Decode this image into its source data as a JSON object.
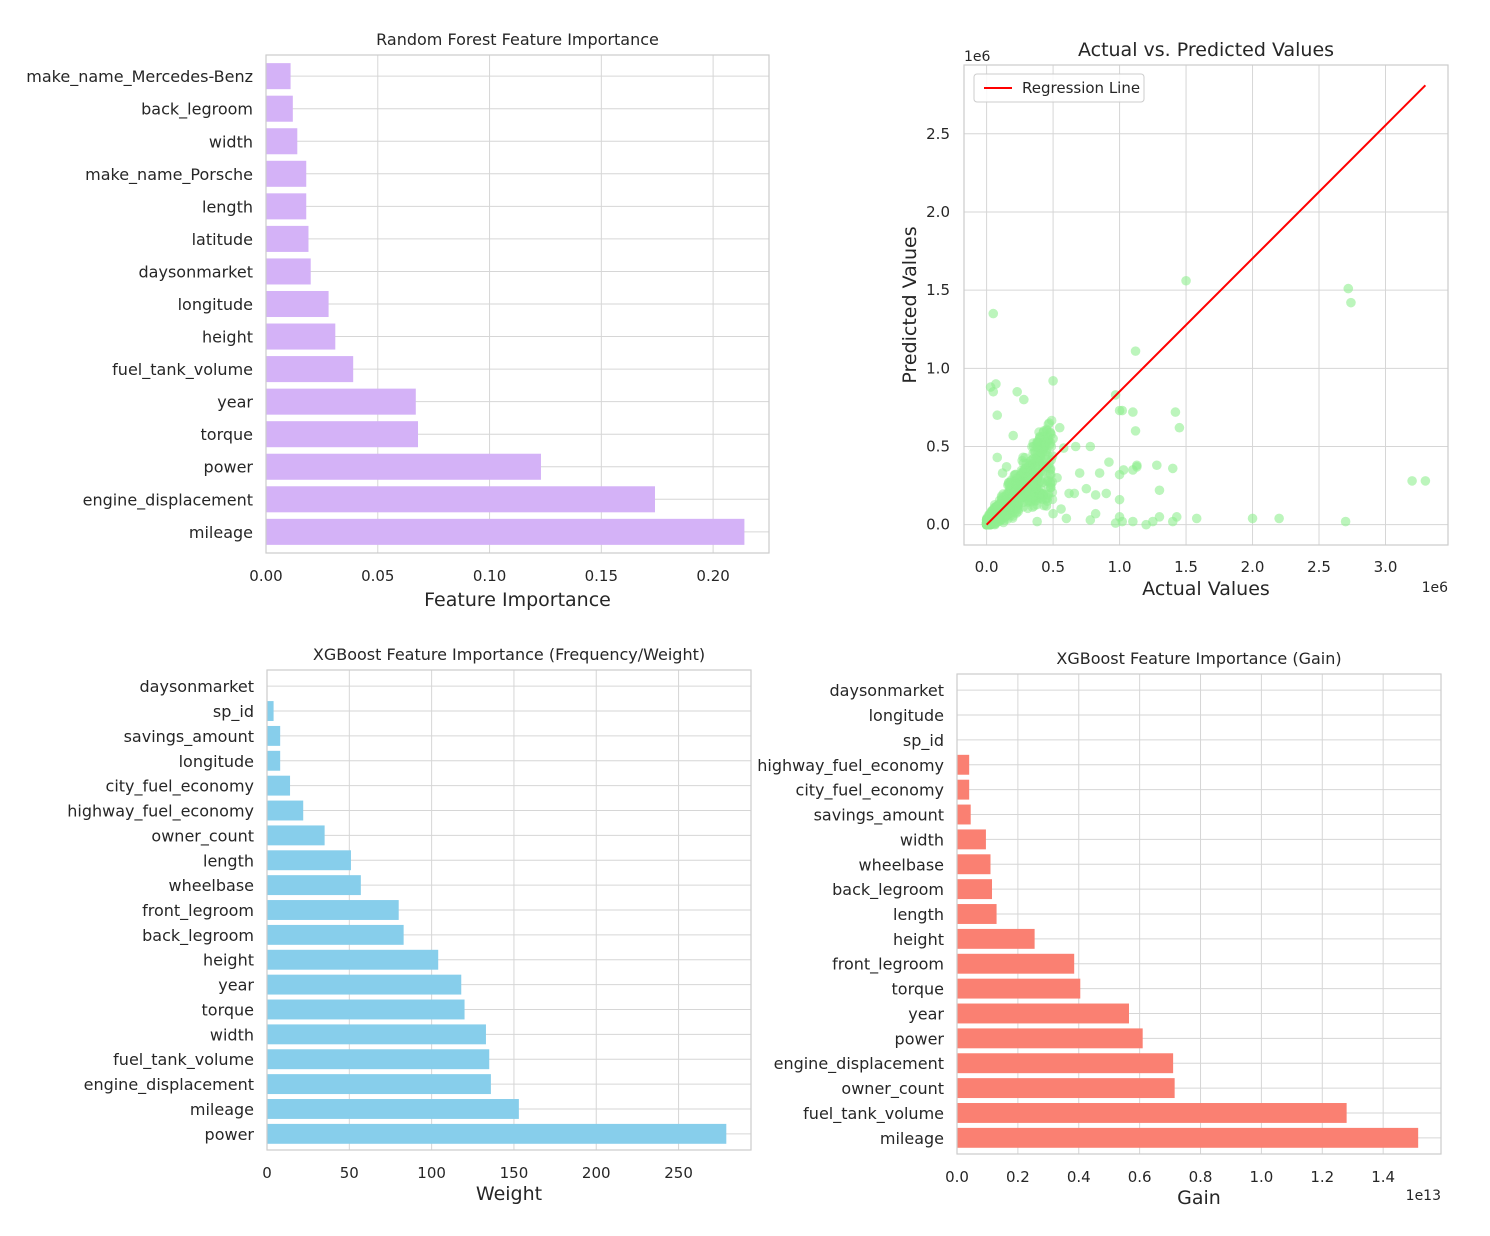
{
  "chart_data": [
    {
      "type": "bar",
      "orientation": "horizontal",
      "title": "Random Forest Feature Importance",
      "xlabel": "Feature Importance",
      "ylabel": "",
      "color": "#d4b2f7",
      "xlim": [
        0,
        0.225
      ],
      "xticks": [
        0,
        0.05,
        0.1,
        0.15,
        0.2
      ],
      "xtick_labels": [
        "0.00",
        "0.05",
        "0.10",
        "0.15",
        "0.20"
      ],
      "grid": true,
      "categories": [
        "mileage",
        "engine_displacement",
        "power",
        "torque",
        "year",
        "fuel_tank_volume",
        "height",
        "longitude",
        "daysonmarket",
        "latitude",
        "length",
        "make_name_Porsche",
        "width",
        "back_legroom",
        "make_name_Mercedes-Benz"
      ],
      "values": [
        0.214,
        0.174,
        0.123,
        0.068,
        0.067,
        0.039,
        0.031,
        0.028,
        0.02,
        0.019,
        0.018,
        0.018,
        0.014,
        0.012,
        0.011
      ]
    },
    {
      "type": "scatter",
      "title": "Actual vs. Predicted Values",
      "xlabel": "Actual Values",
      "ylabel": "Predicted Values",
      "x_exponent_label": "1e6",
      "y_exponent_label": "1e6",
      "xlim": [
        -0.17,
        3.47
      ],
      "ylim": [
        -0.13,
        2.94
      ],
      "xticks": [
        0,
        0.5,
        1.0,
        1.5,
        2.0,
        2.5,
        3.0
      ],
      "xtick_labels": [
        "0.0",
        "0.5",
        "1.0",
        "1.5",
        "2.0",
        "2.5",
        "3.0"
      ],
      "yticks": [
        0,
        0.5,
        1.0,
        1.5,
        2.0,
        2.5
      ],
      "ytick_labels": [
        "0.0",
        "0.5",
        "1.0",
        "1.5",
        "2.0",
        "2.5"
      ],
      "grid": true,
      "point_color": "#90ee90",
      "legend": {
        "placement": "top-left",
        "entries": [
          {
            "label": "Regression Line",
            "color": "#ff0000"
          }
        ]
      },
      "regression_line": {
        "x": [
          0,
          3.3
        ],
        "y": [
          0,
          2.81
        ]
      },
      "points": [
        [
          0.05,
          1.35
        ],
        [
          0.07,
          0.9
        ],
        [
          0.03,
          0.88
        ],
        [
          0.05,
          0.85
        ],
        [
          0.08,
          0.7
        ],
        [
          0.23,
          0.85
        ],
        [
          0.28,
          0.8
        ],
        [
          0.5,
          0.92
        ],
        [
          0.43,
          0.6
        ],
        [
          0.2,
          0.57
        ],
        [
          0.38,
          0.53
        ],
        [
          0.5,
          0.55
        ],
        [
          0.55,
          0.62
        ],
        [
          0.58,
          0.49
        ],
        [
          0.67,
          0.5
        ],
        [
          0.78,
          0.5
        ],
        [
          0.7,
          0.33
        ],
        [
          0.85,
          0.33
        ],
        [
          0.97,
          0.83
        ],
        [
          1.0,
          0.73
        ],
        [
          1.02,
          0.73
        ],
        [
          1.1,
          0.72
        ],
        [
          1.12,
          1.11
        ],
        [
          1.12,
          0.6
        ],
        [
          1.03,
          0.35
        ],
        [
          0.92,
          0.4
        ],
        [
          1.0,
          0.32
        ],
        [
          1.1,
          0.35
        ],
        [
          1.13,
          0.38
        ],
        [
          1.13,
          0.37
        ],
        [
          1.28,
          0.38
        ],
        [
          1.4,
          0.36
        ],
        [
          1.45,
          0.62
        ],
        [
          1.42,
          0.72
        ],
        [
          1.5,
          1.56
        ],
        [
          2.72,
          1.51
        ],
        [
          2.74,
          1.42
        ],
        [
          0.75,
          0.23
        ],
        [
          0.82,
          0.19
        ],
        [
          0.9,
          0.2
        ],
        [
          1.0,
          0.16
        ],
        [
          0.66,
          0.2
        ],
        [
          0.6,
          0.04
        ],
        [
          0.78,
          0.03
        ],
        [
          0.82,
          0.07
        ],
        [
          0.97,
          0.01
        ],
        [
          1.0,
          0.05
        ],
        [
          1.02,
          0.02
        ],
        [
          1.1,
          0.02
        ],
        [
          1.2,
          0.0
        ],
        [
          1.25,
          0.02
        ],
        [
          1.3,
          0.05
        ],
        [
          1.3,
          0.22
        ],
        [
          1.4,
          0.02
        ],
        [
          1.43,
          0.05
        ],
        [
          1.58,
          0.04
        ],
        [
          2.0,
          0.04
        ],
        [
          2.2,
          0.04
        ],
        [
          2.7,
          0.02
        ],
        [
          3.2,
          0.28
        ],
        [
          3.3,
          0.28
        ],
        [
          0.42,
          0.33
        ],
        [
          0.48,
          0.27
        ],
        [
          0.53,
          0.3
        ],
        [
          0.45,
          0.12
        ],
        [
          0.5,
          0.07
        ],
        [
          0.38,
          0.02
        ],
        [
          0.62,
          0.2
        ],
        [
          0.56,
          0.1
        ],
        [
          0.15,
          0.37
        ],
        [
          0.12,
          0.33
        ],
        [
          0.08,
          0.43
        ]
      ]
    },
    {
      "type": "bar",
      "orientation": "horizontal",
      "title": "XGBoost Feature Importance (Frequency/Weight)",
      "xlabel": "Weight",
      "ylabel": "",
      "color": "#87ceeb",
      "xlim": [
        0,
        294
      ],
      "xticks": [
        0,
        50,
        100,
        150,
        200,
        250
      ],
      "xtick_labels": [
        "0",
        "50",
        "100",
        "150",
        "200",
        "250"
      ],
      "grid": true,
      "categories": [
        "power",
        "mileage",
        "engine_displacement",
        "fuel_tank_volume",
        "width",
        "torque",
        "year",
        "height",
        "back_legroom",
        "front_legroom",
        "wheelbase",
        "length",
        "owner_count",
        "highway_fuel_economy",
        "city_fuel_economy",
        "longitude",
        "savings_amount",
        "sp_id",
        "daysonmarket"
      ],
      "values": [
        279,
        153,
        136,
        135,
        133,
        120,
        118,
        104,
        83,
        80,
        57,
        51,
        35,
        22,
        14,
        8,
        8,
        4,
        0
      ]
    },
    {
      "type": "bar",
      "orientation": "horizontal",
      "title": "XGBoost Feature Importance (Gain)",
      "xlabel": "Gain",
      "ylabel": "",
      "x_exponent_label": "1e13",
      "color": "#fa8072",
      "xlim": [
        0,
        1.59
      ],
      "xticks": [
        0,
        0.2,
        0.4,
        0.6,
        0.8,
        1.0,
        1.2,
        1.4
      ],
      "xtick_labels": [
        "0.0",
        "0.2",
        "0.4",
        "0.6",
        "0.8",
        "1.0",
        "1.2",
        "1.4"
      ],
      "grid": true,
      "categories": [
        "mileage",
        "fuel_tank_volume",
        "owner_count",
        "engine_displacement",
        "power",
        "year",
        "torque",
        "front_legroom",
        "height",
        "length",
        "back_legroom",
        "wheelbase",
        "width",
        "savings_amount",
        "city_fuel_economy",
        "highway_fuel_economy",
        "sp_id",
        "longitude",
        "daysonmarket"
      ],
      "values": [
        1.515,
        1.28,
        0.715,
        0.71,
        0.61,
        0.565,
        0.405,
        0.385,
        0.255,
        0.13,
        0.115,
        0.11,
        0.095,
        0.045,
        0.04,
        0.04,
        0.0,
        0.0,
        0.0
      ]
    }
  ]
}
